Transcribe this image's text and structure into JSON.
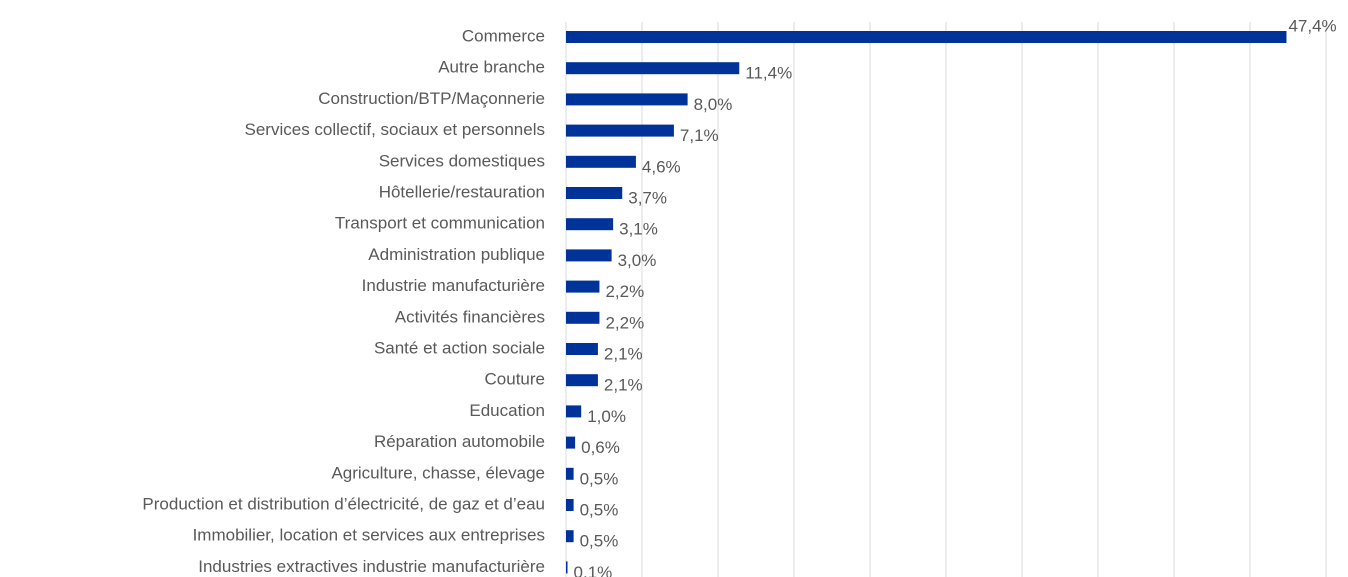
{
  "chart_data": {
    "type": "barh",
    "categories": [
      "Commerce",
      "Autre branche",
      "Construction/BTP/Maçonnerie",
      "Services collectif, sociaux et personnels",
      "Services domestiques",
      "Hôtellerie/restauration",
      "Transport et communication",
      "Administration publique",
      "Industrie manufacturière",
      "Activités financières",
      "Santé et action sociale",
      "Couture",
      "Education",
      "Réparation automobile",
      "Agriculture, chasse, élevage",
      "Production et distribution d’électricité, de gaz et d’eau",
      "Immobilier, location et services aux entreprises",
      "Industries extractives industrie manufacturière"
    ],
    "values": [
      47.4,
      11.4,
      8.0,
      7.1,
      4.6,
      3.7,
      3.1,
      3.0,
      2.2,
      2.2,
      2.1,
      2.1,
      1.0,
      0.6,
      0.5,
      0.5,
      0.5,
      0.1
    ],
    "value_labels": [
      "47,4%",
      "11,4%",
      "8,0%",
      "7,1%",
      "4,6%",
      "3,7%",
      "3,1%",
      "3,0%",
      "2,2%",
      "2,2%",
      "2,1%",
      "2,1%",
      "1,0%",
      "0,6%",
      "0,5%",
      "0,5%",
      "0,5%",
      "0,1%"
    ],
    "color": "#003399",
    "xlim": [
      0,
      50
    ],
    "xticks": [
      0,
      5,
      10,
      15,
      20,
      25,
      30,
      35,
      40,
      45,
      50
    ],
    "grid": true
  }
}
